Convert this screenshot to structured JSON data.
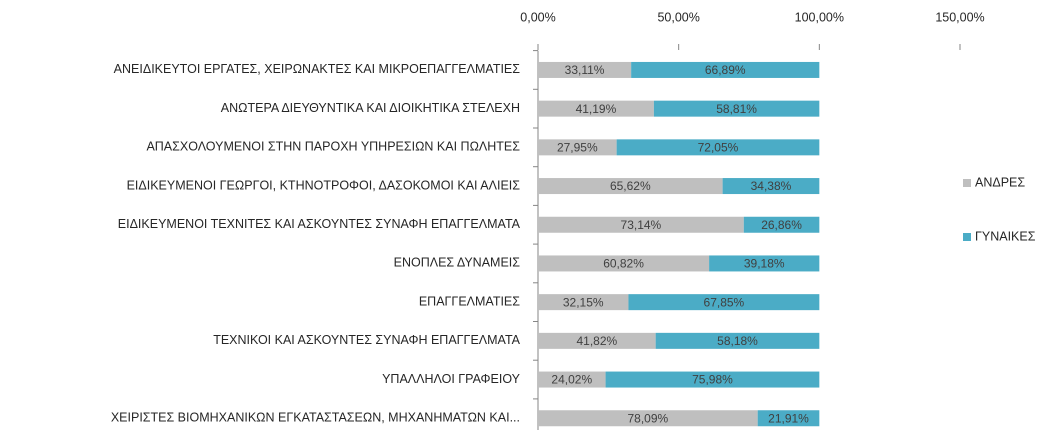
{
  "chart_data": {
    "type": "bar",
    "orientation": "horizontal",
    "stacked": true,
    "categories": [
      "ΑΝΕΙΔΙΚΕΥΤΟΙ ΕΡΓΑΤΕΣ, ΧΕΙΡΩΝΑΚΤΕΣ ΚΑΙ ΜΙΚΡΟΕΠΑΓΓΕΛΜΑΤΙΕΣ",
      "ΑΝΩΤΕΡΑ ΔΙΕΥΘΥΝΤΙΚΑ ΚΑΙ ΔΙΟΙΚΗΤΙΚΑ ΣΤΕΛΕΧΗ",
      "ΑΠΑΣΧΟΛΟΥΜΕΝΟΙ ΣΤΗΝ ΠΑΡΟΧΗ ΥΠΗΡΕΣΙΩΝ ΚΑΙ ΠΩΛΗΤΕΣ",
      "ΕΙΔΙΚΕΥΜΕΝΟΙ ΓΕΩΡΓΟΙ, ΚΤΗΝΟΤΡΟΦΟΙ, ΔΑΣΟΚΟΜΟΙ ΚΑΙ ΑΛΙΕΙΣ",
      "ΕΙΔΙΚΕΥΜΕΝΟΙ ΤΕΧΝΙΤΕΣ ΚΑΙ ΑΣΚΟΥΝΤΕΣ ΣΥΝΑΦΗ ΕΠΑΓΓΕΛΜΑΤΑ",
      "ΕΝΟΠΛΕΣ ΔΥΝΑΜΕΙΣ",
      "ΕΠΑΓΓΕΛΜΑΤΙΕΣ",
      "ΤΕΧΝΙΚΟΙ ΚΑΙ ΑΣΚΟΥΝΤΕΣ ΣΥΝΑΦΗ ΕΠΑΓΓΕΛΜΑΤΑ",
      "ΥΠΑΛΛΗΛΟΙ ΓΡΑΦΕΙΟΥ",
      "ΧΕΙΡΙΣΤΕΣ ΒΙΟΜΗΧΑΝΙΚΩΝ ΕΓΚΑΤΑΣΤΑΣΕΩΝ, ΜΗΧΑΝΗΜΑΤΩΝ ΚΑΙ..."
    ],
    "series": [
      {
        "name": "ΑΝΔΡΕΣ",
        "color": "#bfbfbf",
        "values": [
          33.11,
          41.19,
          27.95,
          65.62,
          73.14,
          60.82,
          32.15,
          41.82,
          24.02,
          78.09
        ],
        "value_labels": [
          "33,11%",
          "41,19%",
          "27,95%",
          "65,62%",
          "73,14%",
          "60,82%",
          "32,15%",
          "41,82%",
          "24,02%",
          "78,09%"
        ]
      },
      {
        "name": "ΓΥΝΑΙΚΕΣ",
        "color": "#4bacc6",
        "values": [
          66.89,
          58.81,
          72.05,
          34.38,
          26.86,
          39.18,
          67.85,
          58.18,
          75.98,
          21.91
        ],
        "value_labels": [
          "66,89%",
          "58,81%",
          "72,05%",
          "34,38%",
          "26,86%",
          "39,18%",
          "67,85%",
          "58,18%",
          "75,98%",
          "21,91%"
        ]
      }
    ],
    "xlim": [
      0,
      150
    ],
    "xticks": [
      {
        "value": 0,
        "label": "0,00%"
      },
      {
        "value": 50,
        "label": "50,00%"
      },
      {
        "value": 100,
        "label": "100,00%"
      },
      {
        "value": 150,
        "label": "150,00%"
      }
    ],
    "legend": "right"
  }
}
